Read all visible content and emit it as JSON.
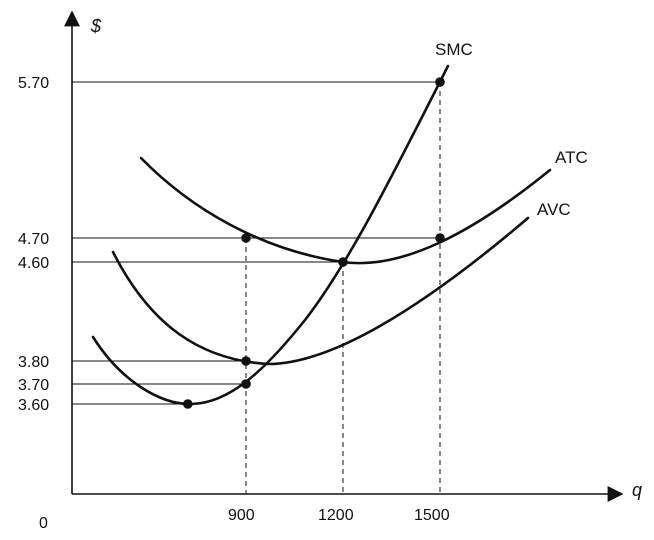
{
  "chart_data": {
    "type": "line",
    "xlabel": "q",
    "ylabel": "$",
    "origin_label": "0",
    "x_ticks": [
      "900",
      "1200",
      "1500"
    ],
    "y_ticks": [
      "5.70",
      "4.70",
      "4.60",
      "3.80",
      "3.70",
      "3.60"
    ],
    "series": [
      {
        "name": "SMC",
        "points": [
          [
            720,
            3.6
          ],
          [
            900,
            3.7
          ],
          [
            1200,
            4.6
          ],
          [
            1500,
            5.7
          ]
        ]
      },
      {
        "name": "ATC",
        "points": [
          [
            900,
            4.7
          ],
          [
            1200,
            4.6
          ],
          [
            1500,
            4.7
          ]
        ]
      },
      {
        "name": "AVC",
        "points": [
          [
            900,
            3.8
          ]
        ]
      }
    ],
    "marked_points": [
      {
        "series": "SMC",
        "x": 720,
        "y": 3.6
      },
      {
        "series": "SMC",
        "x": 900,
        "y": 3.7
      },
      {
        "series": "SMC",
        "x": 1500,
        "y": 5.7
      },
      {
        "series": "ATC",
        "x": 900,
        "y": 4.7
      },
      {
        "series": "ATC",
        "x": 1200,
        "y": 4.6
      },
      {
        "series": "ATC",
        "x": 1500,
        "y": 4.7
      },
      {
        "series": "AVC",
        "x": 900,
        "y": 3.8
      }
    ],
    "grid": false,
    "legend": "none"
  }
}
